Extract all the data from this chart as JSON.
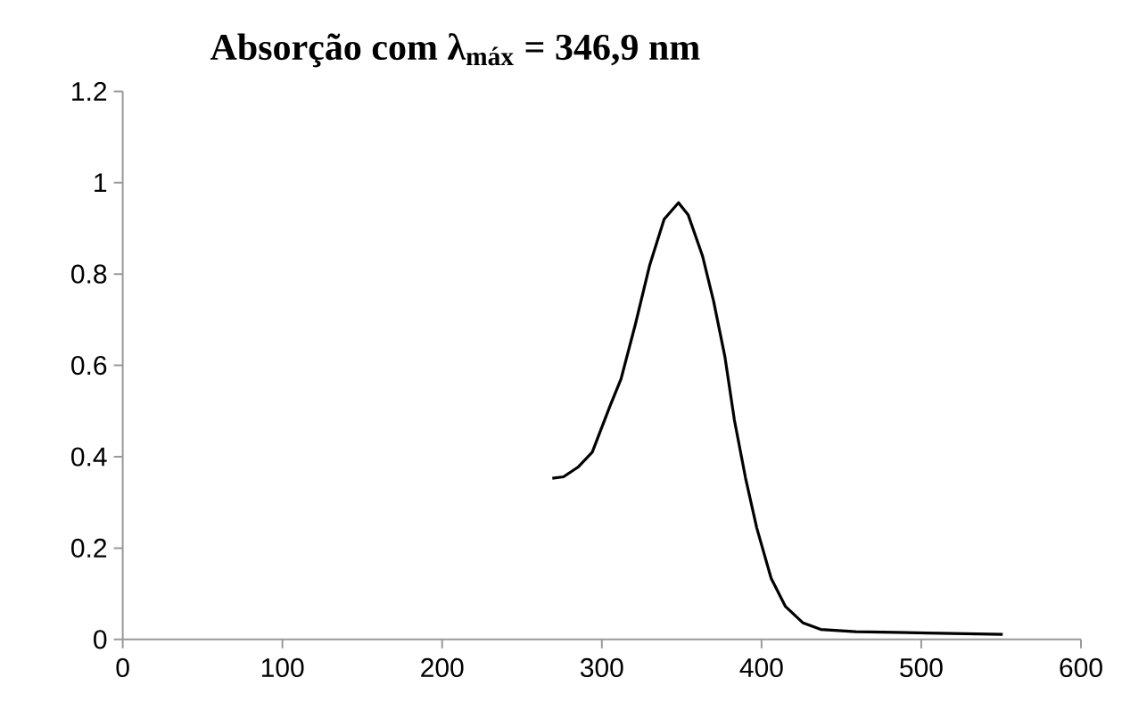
{
  "chart_data": {
    "type": "line",
    "title": "Absorção com λ$_{máx}$ = 346,9 nm",
    "xlim": [
      0,
      600
    ],
    "xticks": [
      0,
      100,
      200,
      300,
      400,
      500,
      600
    ],
    "ylim": [
      0,
      1.2
    ],
    "yticks": [
      0,
      0.2,
      0.4,
      0.6,
      0.8,
      1,
      1.2
    ],
    "grid": false,
    "marker": "none",
    "line_style": "solid",
    "series": [
      {
        "color": "#000000",
        "x": [
          269,
          276,
          285,
          294,
          305,
          312,
          321,
          330,
          339,
          348,
          354,
          363,
          370,
          377,
          383,
          390,
          397,
          406,
          415,
          426,
          437,
          459,
          504,
          551
        ],
        "values": [
          0.353,
          0.356,
          0.377,
          0.41,
          0.51,
          0.57,
          0.69,
          0.82,
          0.92,
          0.956,
          0.93,
          0.84,
          0.74,
          0.62,
          0.48,
          0.353,
          0.244,
          0.134,
          0.072,
          0.036,
          0.022,
          0.017,
          0.014,
          0.011
        ]
      }
    ]
  }
}
